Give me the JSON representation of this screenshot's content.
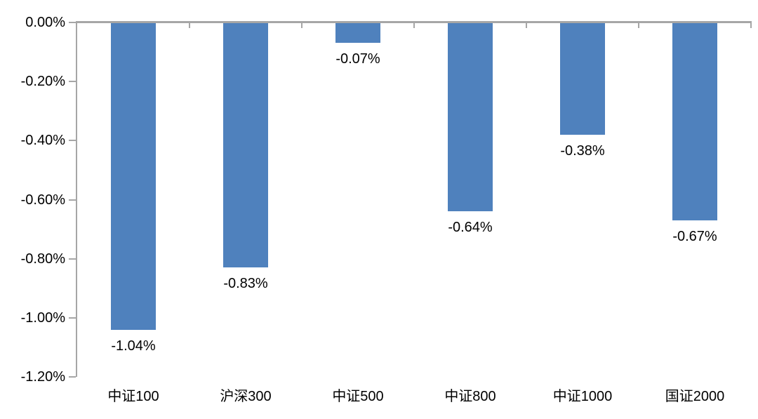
{
  "chart_data": {
    "type": "bar",
    "title": "",
    "xlabel": "",
    "ylabel": "",
    "categories": [
      "中证100",
      "沪深300",
      "中证500",
      "中证800",
      "中证1000",
      "国证2000"
    ],
    "values": [
      -1.04,
      -0.83,
      -0.07,
      -0.64,
      -0.38,
      -0.67
    ],
    "data_labels": [
      "-1.04%",
      "-0.83%",
      "-0.07%",
      "-0.64%",
      "-0.38%",
      "-0.67%"
    ],
    "y_tick_labels": [
      "0.00%",
      "-0.20%",
      "-0.40%",
      "-0.60%",
      "-0.80%",
      "-1.00%",
      "-1.20%"
    ],
    "y_tick_values": [
      0,
      -0.2,
      -0.4,
      -0.6,
      -0.8,
      -1.0,
      -1.2
    ],
    "ylim": [
      -1.2,
      0
    ],
    "value_unit": "percent",
    "bar_color": "#4F81BD",
    "axis_color": "#A6A6A6",
    "text_color": "#000000",
    "grid": "off",
    "legend": "none"
  }
}
